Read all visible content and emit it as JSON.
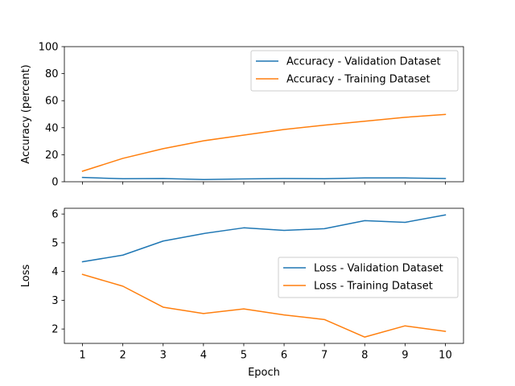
{
  "chart_data": [
    {
      "type": "line",
      "xlabel": "",
      "ylabel": "Accuracy (percent)",
      "xlim": [
        0.55,
        10.45
      ],
      "ylim": [
        0,
        100
      ],
      "x": [
        1,
        2,
        3,
        4,
        5,
        6,
        7,
        8,
        9,
        10
      ],
      "xticks_labeled": false,
      "yticks": [
        0,
        20,
        40,
        60,
        80,
        100
      ],
      "legend_location": "top-right",
      "grid": false,
      "series": [
        {
          "name": "Accuracy - Validation Dataset",
          "color": "#1f77b4",
          "values": [
            3.2,
            2.2,
            2.4,
            1.6,
            2.1,
            2.4,
            2.2,
            2.8,
            2.8,
            2.4
          ]
        },
        {
          "name": "Accuracy - Training Dataset",
          "color": "#ff7f0e",
          "values": [
            7.8,
            17.3,
            24.5,
            30.3,
            34.5,
            38.7,
            41.9,
            44.8,
            47.7,
            49.8
          ]
        }
      ]
    },
    {
      "type": "line",
      "xlabel": "Epoch",
      "ylabel": "Loss",
      "xlim": [
        0.55,
        10.45
      ],
      "ylim": [
        1.5,
        6.2
      ],
      "x": [
        1,
        2,
        3,
        4,
        5,
        6,
        7,
        8,
        9,
        10
      ],
      "xticks_labeled": true,
      "yticks": [
        2,
        3,
        4,
        5,
        6
      ],
      "legend_location": "center-right",
      "grid": false,
      "series": [
        {
          "name": "Loss - Validation Dataset",
          "color": "#1f77b4",
          "values": [
            4.34,
            4.57,
            5.06,
            5.32,
            5.52,
            5.43,
            5.49,
            5.77,
            5.71,
            5.97
          ]
        },
        {
          "name": "Loss - Training Dataset",
          "color": "#ff7f0e",
          "values": [
            3.9,
            3.49,
            2.76,
            2.54,
            2.7,
            2.49,
            2.33,
            1.72,
            2.11,
            1.92
          ]
        }
      ]
    }
  ]
}
